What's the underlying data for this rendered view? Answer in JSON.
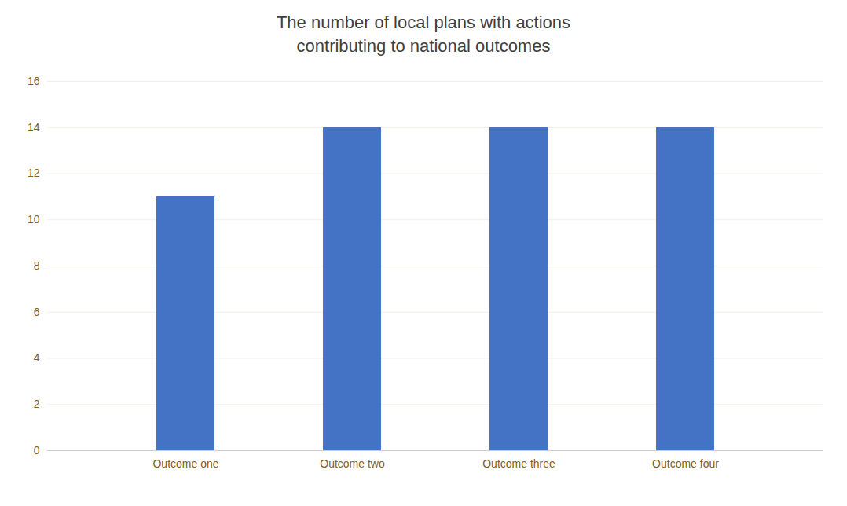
{
  "chart_data": {
    "type": "bar",
    "title": "The number of local plans with actions\ncontributing to national outcomes",
    "categories": [
      "Outcome one",
      "Outcome two",
      "Outcome three",
      "Outcome four"
    ],
    "values": [
      11,
      14,
      14,
      14
    ],
    "color": "#4472C4",
    "ylim": [
      0,
      16
    ],
    "yticks": [
      0,
      2,
      4,
      6,
      8,
      10,
      12,
      14,
      16
    ],
    "grid": true
  }
}
